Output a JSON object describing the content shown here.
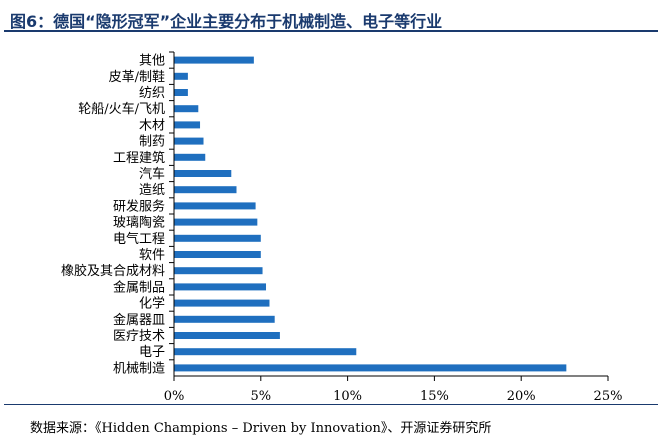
{
  "title": "图6：德国“隐形冠军”企业主要分布于机械制造、电子等行业",
  "source": "数据来源：《Hidden Champions – Driven by Innovation》、开源证券研究所",
  "colors": {
    "bar": "#1f6fbf",
    "title": "#1a3a6e",
    "axis": "#000000"
  },
  "chart_data": {
    "type": "bar",
    "orientation": "horizontal",
    "title": "",
    "xlabel": "",
    "ylabel": "",
    "xlim": [
      0,
      25
    ],
    "xticks": [
      0,
      5,
      10,
      15,
      20,
      25
    ],
    "xtick_labels": [
      "0%",
      "5%",
      "10%",
      "15%",
      "20%",
      "25%"
    ],
    "grid": false,
    "legend": "none",
    "categories": [
      "其他",
      "皮革/制鞋",
      "纺织",
      "轮船/火车/飞机",
      "木材",
      "制药",
      "工程建筑",
      "汽车",
      "造纸",
      "研发服务",
      "玻璃陶瓷",
      "电气工程",
      "软件",
      "橡胶及其合成材料",
      "金属制品",
      "化学",
      "金属器皿",
      "医疗技术",
      "电子",
      "机械制造"
    ],
    "values": [
      4.6,
      0.8,
      0.8,
      1.4,
      1.5,
      1.7,
      1.8,
      3.3,
      3.6,
      4.7,
      4.8,
      5.0,
      5.0,
      5.1,
      5.3,
      5.5,
      5.8,
      6.1,
      10.5,
      22.6
    ]
  }
}
